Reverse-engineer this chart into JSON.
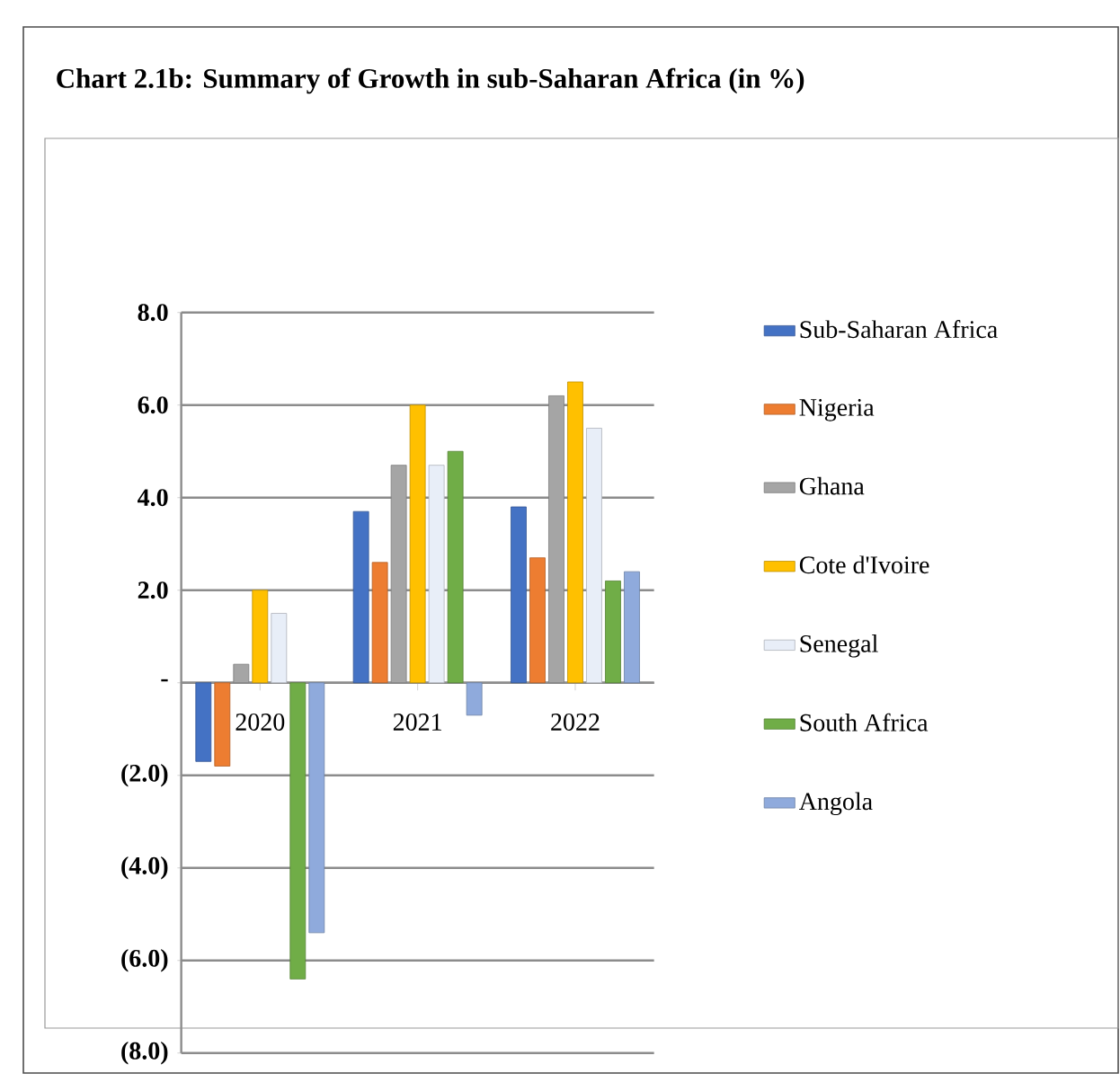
{
  "chart_data": {
    "type": "bar",
    "title": "Chart 2.1b: Summary of Growth in sub-Saharan Africa (in %)",
    "categories": [
      "2020",
      "2021",
      "2022"
    ],
    "series": [
      {
        "name": "Sub-Saharan Africa",
        "color": "#4472c4",
        "values": [
          -1.7,
          3.7,
          3.8
        ]
      },
      {
        "name": "Nigeria",
        "color": "#ed7d31",
        "values": [
          -1.8,
          2.6,
          2.7
        ]
      },
      {
        "name": "Ghana",
        "color": "#a5a5a5",
        "values": [
          0.4,
          4.7,
          6.2
        ]
      },
      {
        "name": "Cote d'Ivoire",
        "color": "#ffc000",
        "values": [
          2.0,
          6.0,
          6.5
        ]
      },
      {
        "name": "Senegal",
        "color": "#e8eef8",
        "values": [
          1.5,
          4.7,
          5.5
        ]
      },
      {
        "name": "South Africa",
        "color": "#70ad47",
        "values": [
          -6.4,
          5.0,
          2.2
        ]
      },
      {
        "name": "Angola",
        "color": "#8faadc",
        "values": [
          -5.4,
          -0.7,
          2.4
        ]
      }
    ],
    "ylim": [
      -8,
      8
    ],
    "yticks": [
      {
        "value": -8,
        "label": "(8.0)"
      },
      {
        "value": -6,
        "label": "(6.0)"
      },
      {
        "value": -4,
        "label": "(4.0)"
      },
      {
        "value": -2,
        "label": "(2.0)"
      },
      {
        "value": 0,
        "label": "-"
      },
      {
        "value": 2,
        "label": "2.0"
      },
      {
        "value": 4,
        "label": "4.0"
      },
      {
        "value": 6,
        "label": "6.0"
      },
      {
        "value": 8,
        "label": "8.0"
      }
    ],
    "grid": "y",
    "legend": "right"
  }
}
